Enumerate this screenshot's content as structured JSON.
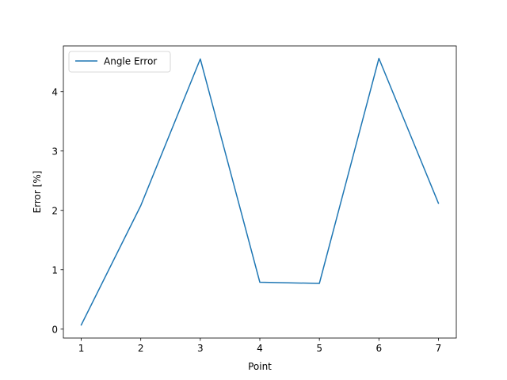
{
  "chart_data": {
    "type": "line",
    "title": "",
    "xlabel": "Point",
    "ylabel": "Error [%]",
    "x": [
      1,
      2,
      3,
      4,
      5,
      6,
      7
    ],
    "xlim": [
      0.7,
      7.3
    ],
    "ylim": [
      -0.15,
      4.77
    ],
    "xticks": [
      1,
      2,
      3,
      4,
      5,
      6,
      7
    ],
    "yticks": [
      0,
      1,
      2,
      3,
      4
    ],
    "grid": false,
    "legend_position": "upper-left",
    "series": [
      {
        "name": "Angle Error",
        "color": "#1f77b4",
        "values": [
          0.07,
          2.08,
          4.55,
          0.79,
          0.77,
          4.56,
          2.12
        ]
      }
    ]
  }
}
